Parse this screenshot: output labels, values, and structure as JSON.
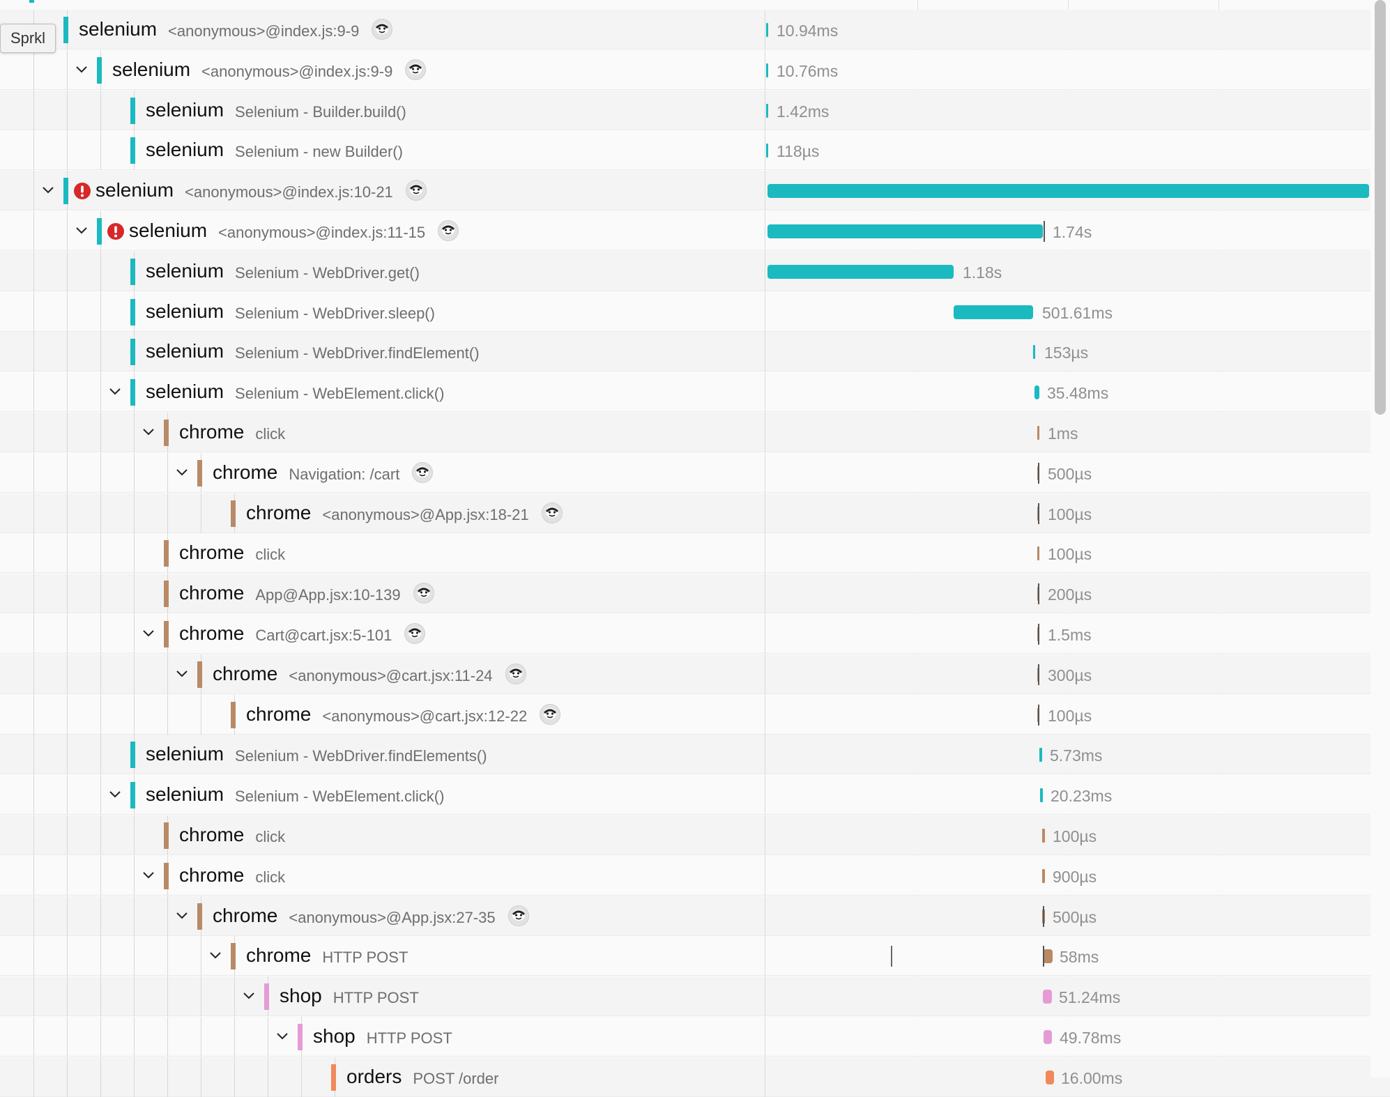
{
  "tooltip": {
    "text": "Sprkl"
  },
  "colors": {
    "selenium": "#1bb9c0",
    "chrome": "#b88a66",
    "shop": "#e59bd6",
    "orders": "#f08a5a",
    "error": "#d62828"
  },
  "spans": [
    {
      "service": "selenium",
      "operation": "<anonymous>@index.js:9-9",
      "duration": "10.94ms",
      "depth": 0,
      "chevron": false,
      "error": false,
      "sloth": true
    },
    {
      "service": "selenium",
      "operation": "<anonymous>@index.js:9-9",
      "duration": "10.76ms",
      "depth": 1,
      "chevron": true,
      "error": false,
      "sloth": true
    },
    {
      "service": "selenium",
      "operation": "Selenium - Builder.build()",
      "duration": "1.42ms",
      "depth": 2,
      "chevron": false,
      "error": false,
      "sloth": false
    },
    {
      "service": "selenium",
      "operation": "Selenium - new Builder()",
      "duration": "118µs",
      "depth": 2,
      "chevron": false,
      "error": false,
      "sloth": false
    },
    {
      "service": "selenium",
      "operation": "<anonymous>@index.js:10-21",
      "duration": "",
      "depth": 0,
      "chevron": true,
      "error": true,
      "sloth": true
    },
    {
      "service": "selenium",
      "operation": "<anonymous>@index.js:11-15",
      "duration": "1.74s",
      "depth": 1,
      "chevron": true,
      "error": true,
      "sloth": true
    },
    {
      "service": "selenium",
      "operation": "Selenium - WebDriver.get()",
      "duration": "1.18s",
      "depth": 2,
      "chevron": false,
      "error": false,
      "sloth": false
    },
    {
      "service": "selenium",
      "operation": "Selenium - WebDriver.sleep()",
      "duration": "501.61ms",
      "depth": 2,
      "chevron": false,
      "error": false,
      "sloth": false
    },
    {
      "service": "selenium",
      "operation": "Selenium - WebDriver.findElement()",
      "duration": "153µs",
      "depth": 2,
      "chevron": false,
      "error": false,
      "sloth": false
    },
    {
      "service": "selenium",
      "operation": "Selenium - WebElement.click()",
      "duration": "35.48ms",
      "depth": 2,
      "chevron": true,
      "error": false,
      "sloth": false
    },
    {
      "service": "chrome",
      "operation": "click",
      "duration": "1ms",
      "depth": 3,
      "chevron": true,
      "error": false,
      "sloth": false
    },
    {
      "service": "chrome",
      "operation": "Navigation: /cart",
      "duration": "500µs",
      "depth": 4,
      "chevron": true,
      "error": false,
      "sloth": true
    },
    {
      "service": "chrome",
      "operation": "<anonymous>@App.jsx:18-21",
      "duration": "100µs",
      "depth": 5,
      "chevron": false,
      "error": false,
      "sloth": true
    },
    {
      "service": "chrome",
      "operation": "click",
      "duration": "100µs",
      "depth": 3,
      "chevron": false,
      "error": false,
      "sloth": false
    },
    {
      "service": "chrome",
      "operation": "App@App.jsx:10-139",
      "duration": "200µs",
      "depth": 3,
      "chevron": false,
      "error": false,
      "sloth": true
    },
    {
      "service": "chrome",
      "operation": "Cart@cart.jsx:5-101",
      "duration": "1.5ms",
      "depth": 3,
      "chevron": true,
      "error": false,
      "sloth": true
    },
    {
      "service": "chrome",
      "operation": "<anonymous>@cart.jsx:11-24",
      "duration": "300µs",
      "depth": 4,
      "chevron": true,
      "error": false,
      "sloth": true
    },
    {
      "service": "chrome",
      "operation": "<anonymous>@cart.jsx:12-22",
      "duration": "100µs",
      "depth": 5,
      "chevron": false,
      "error": false,
      "sloth": true
    },
    {
      "service": "selenium",
      "operation": "Selenium - WebDriver.findElements()",
      "duration": "5.73ms",
      "depth": 2,
      "chevron": false,
      "error": false,
      "sloth": false
    },
    {
      "service": "selenium",
      "operation": "Selenium - WebElement.click()",
      "duration": "20.23ms",
      "depth": 2,
      "chevron": true,
      "error": false,
      "sloth": false
    },
    {
      "service": "chrome",
      "operation": "click",
      "duration": "100µs",
      "depth": 3,
      "chevron": false,
      "error": false,
      "sloth": false
    },
    {
      "service": "chrome",
      "operation": "click",
      "duration": "900µs",
      "depth": 3,
      "chevron": true,
      "error": false,
      "sloth": false
    },
    {
      "service": "chrome",
      "operation": "<anonymous>@App.jsx:27-35",
      "duration": "500µs",
      "depth": 4,
      "chevron": true,
      "error": false,
      "sloth": true
    },
    {
      "service": "chrome",
      "operation": "HTTP POST",
      "duration": "58ms",
      "depth": 5,
      "chevron": true,
      "error": false,
      "sloth": false
    },
    {
      "service": "shop",
      "operation": "HTTP POST",
      "duration": "51.24ms",
      "depth": 6,
      "chevron": true,
      "error": false,
      "sloth": false
    },
    {
      "service": "shop",
      "operation": "HTTP POST",
      "duration": "49.78ms",
      "depth": 7,
      "chevron": true,
      "error": false,
      "sloth": false
    },
    {
      "service": "orders",
      "operation": "POST /order",
      "duration": "16.00ms",
      "depth": 8,
      "chevron": false,
      "error": false,
      "sloth": false
    }
  ]
}
